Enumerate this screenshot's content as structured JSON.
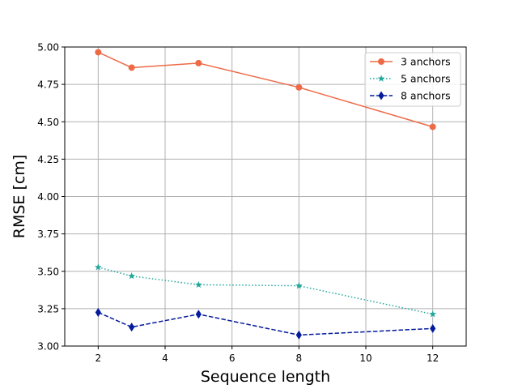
{
  "chart_data": {
    "type": "line",
    "title": "",
    "xlabel": "Sequence length",
    "ylabel": "RMSE [cm]",
    "xlim": [
      1,
      13
    ],
    "ylim": [
      3.0,
      5.0
    ],
    "xticks": [
      2,
      4,
      6,
      8,
      10,
      12
    ],
    "yticks": [
      3.0,
      3.25,
      3.5,
      3.75,
      4.0,
      4.25,
      4.5,
      4.75,
      5.0
    ],
    "xtick_labels": [
      "2",
      "4",
      "6",
      "8",
      "10",
      "12"
    ],
    "ytick_labels": [
      "3.00",
      "3.25",
      "3.50",
      "3.75",
      "4.00",
      "4.25",
      "4.50",
      "4.75",
      "5.00"
    ],
    "grid": true,
    "legend": "top-right",
    "x": [
      2,
      3,
      5,
      8,
      12
    ],
    "series": [
      {
        "name": "3 anchors",
        "values": [
          4.965,
          4.862,
          4.892,
          4.73,
          4.466
        ],
        "color": "#ee6a47",
        "marker": "circle",
        "linestyle": "solid"
      },
      {
        "name": "5 anchors",
        "values": [
          3.527,
          3.468,
          3.41,
          3.403,
          3.213
        ],
        "color": "#1fa79a",
        "marker": "star",
        "linestyle": "dotted"
      },
      {
        "name": "8 anchors",
        "values": [
          3.225,
          3.127,
          3.213,
          3.074,
          3.117
        ],
        "color": "#041b9b",
        "marker": "diamond",
        "linestyle": "dashed"
      }
    ]
  }
}
